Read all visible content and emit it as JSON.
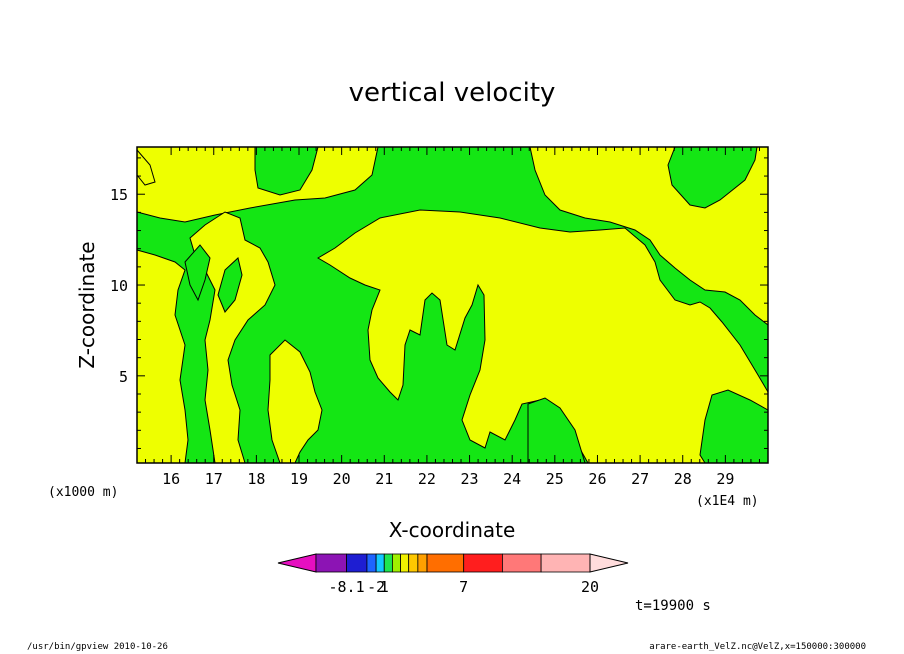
{
  "chart_data": {
    "type": "heatmap",
    "title": "vertical velocity",
    "xlabel": "X-coordinate",
    "ylabel": "Z-coordinate",
    "x_unit_label": "(x1E4 m)",
    "y_unit_label": "(x1000 m)",
    "xlim": [
      15.2,
      30.0
    ],
    "ylim": [
      0.2,
      17.6
    ],
    "x_ticks": [
      "16",
      "17",
      "18",
      "19",
      "20",
      "21",
      "22",
      "23",
      "24",
      "25",
      "26",
      "27",
      "28",
      "29"
    ],
    "y_ticks": [
      "5",
      "10",
      "15"
    ],
    "colorbar": {
      "colors": [
        "#e60fc0",
        "#8c14b4",
        "#1e1ed2",
        "#1e64ff",
        "#14c8ff",
        "#1ee650",
        "#a0f000",
        "#f0f000",
        "#ffc800",
        "#ffa000",
        "#ff6e00",
        "#ff1e1e",
        "#ff7878",
        "#ffb4b4",
        "#ffdcdc"
      ],
      "labels": [
        "-8.1",
        "-2",
        "1",
        "7",
        "20"
      ]
    },
    "regions": [
      {
        "level": "-2 to 1",
        "color": "#14e614",
        "description": "green"
      },
      {
        "level": "1 to 2",
        "color": "#eeff00",
        "description": "yellow"
      }
    ],
    "time_label": "t=19900 s"
  },
  "footer": {
    "left": "/usr/bin/gpview   2010-10-26",
    "right": "arare-earth_VelZ.nc@VelZ,x=150000:300000"
  }
}
